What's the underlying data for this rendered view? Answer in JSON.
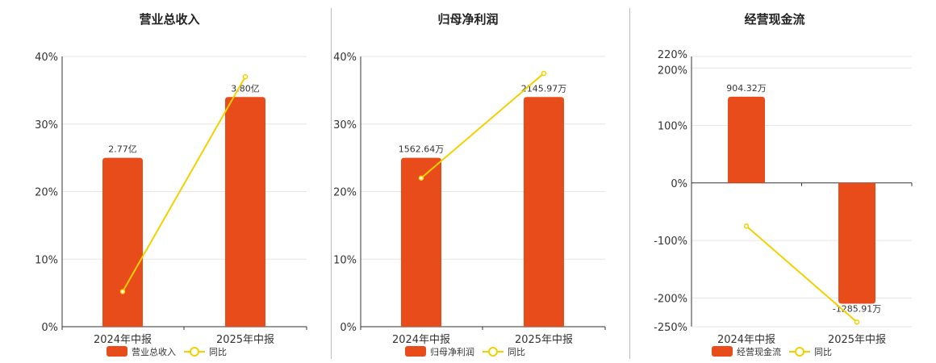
{
  "colors": {
    "bar": "#e84c1a",
    "line": "#f5d000",
    "grid": "#e6e6e6",
    "axis": "#333333"
  },
  "chart_data": [
    {
      "type": "bar",
      "title": "营业总收入",
      "categories": [
        "2024年中报",
        "2025年中报"
      ],
      "series": [
        {
          "name": "营业总收入",
          "type": "bar",
          "values": [
            25,
            34
          ],
          "labels": [
            "2.77亿",
            "3.80亿"
          ]
        },
        {
          "name": "同比",
          "type": "line",
          "values": [
            5.2,
            37
          ]
        }
      ],
      "ylim": [
        0,
        40
      ],
      "yticks": [
        0,
        10,
        20,
        30,
        40
      ],
      "ytick_labels": [
        "0%",
        "10%",
        "20%",
        "30%",
        "40%"
      ],
      "legend": "bottom-center",
      "grid": true
    },
    {
      "type": "bar",
      "title": "归母净利润",
      "categories": [
        "2024年中报",
        "2025年中报"
      ],
      "series": [
        {
          "name": "归母净利润",
          "type": "bar",
          "values": [
            25,
            34
          ],
          "labels": [
            "1562.64万",
            "2145.97万"
          ]
        },
        {
          "name": "同比",
          "type": "line",
          "values": [
            22,
            37.5
          ]
        }
      ],
      "ylim": [
        0,
        40
      ],
      "yticks": [
        0,
        10,
        20,
        30,
        40
      ],
      "ytick_labels": [
        "0%",
        "10%",
        "20%",
        "30%",
        "40%"
      ],
      "legend": "bottom-center",
      "grid": true
    },
    {
      "type": "bar",
      "title": "经营现金流",
      "categories": [
        "2024年中报",
        "2025年中报"
      ],
      "series": [
        {
          "name": "经营现金流",
          "type": "bar",
          "values": [
            150,
            -210
          ],
          "labels": [
            "904.32万",
            "-1285.91万"
          ]
        },
        {
          "name": "同比",
          "type": "line",
          "values": [
            -75,
            -242
          ]
        }
      ],
      "ylim": [
        -250,
        220
      ],
      "yticks": [
        -250,
        -200,
        -100,
        0,
        100,
        200,
        220
      ],
      "ytick_labels": [
        "-250%",
        "-200%",
        "-100%",
        "0%",
        "100%",
        "200%",
        "220%"
      ],
      "legend": "bottom-center",
      "grid": true
    }
  ]
}
